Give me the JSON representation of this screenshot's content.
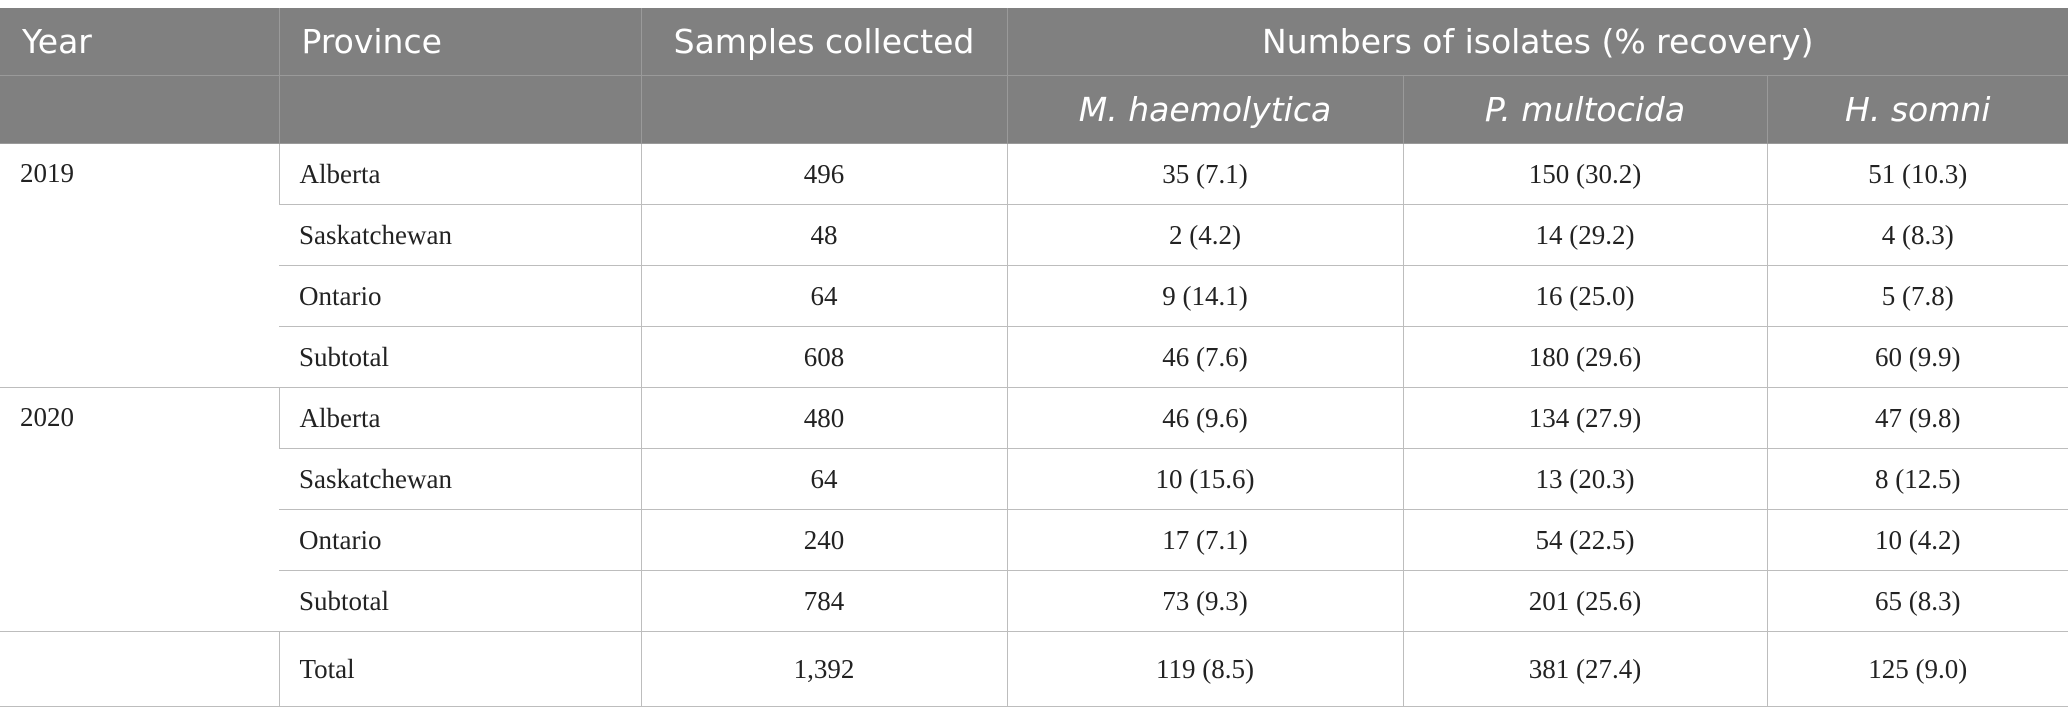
{
  "headers": {
    "year": "Year",
    "province": "Province",
    "samples": "Samples collected",
    "isolates": "Numbers of isolates (% recovery)",
    "species": [
      "M. haemolytica",
      "P. multocida",
      "H. somni"
    ]
  },
  "groups": [
    {
      "year": "2019",
      "rows": [
        {
          "province": "Alberta",
          "samples": "496",
          "mh": "35 (7.1)",
          "pm": "150 (30.2)",
          "hs": "51 (10.3)"
        },
        {
          "province": "Saskatchewan",
          "samples": "48",
          "mh": "2 (4.2)",
          "pm": "14 (29.2)",
          "hs": "4 (8.3)"
        },
        {
          "province": "Ontario",
          "samples": "64",
          "mh": "9 (14.1)",
          "pm": "16 (25.0)",
          "hs": "5 (7.8)"
        },
        {
          "province": "Subtotal",
          "samples": "608",
          "mh": "46 (7.6)",
          "pm": "180 (29.6)",
          "hs": "60 (9.9)"
        }
      ]
    },
    {
      "year": "2020",
      "rows": [
        {
          "province": "Alberta",
          "samples": "480",
          "mh": "46 (9.6)",
          "pm": "134 (27.9)",
          "hs": "47 (9.8)"
        },
        {
          "province": "Saskatchewan",
          "samples": "64",
          "mh": "10 (15.6)",
          "pm": "13 (20.3)",
          "hs": "8 (12.5)"
        },
        {
          "province": "Ontario",
          "samples": "240",
          "mh": "17 (7.1)",
          "pm": "54 (22.5)",
          "hs": "10 (4.2)"
        },
        {
          "province": "Subtotal",
          "samples": "784",
          "mh": "73 (9.3)",
          "pm": "201 (25.6)",
          "hs": "65 (8.3)"
        }
      ]
    },
    {
      "year": "",
      "rows": [
        {
          "province": "Total",
          "samples": "1,392",
          "mh": "119 (8.5)",
          "pm": "381 (27.4)",
          "hs": "125 (9.0)"
        }
      ]
    }
  ],
  "colors": {
    "header_bg": "#808080",
    "header_text": "#ffffff",
    "grid_line": "#bdbdbd",
    "body_text": "#222222"
  }
}
